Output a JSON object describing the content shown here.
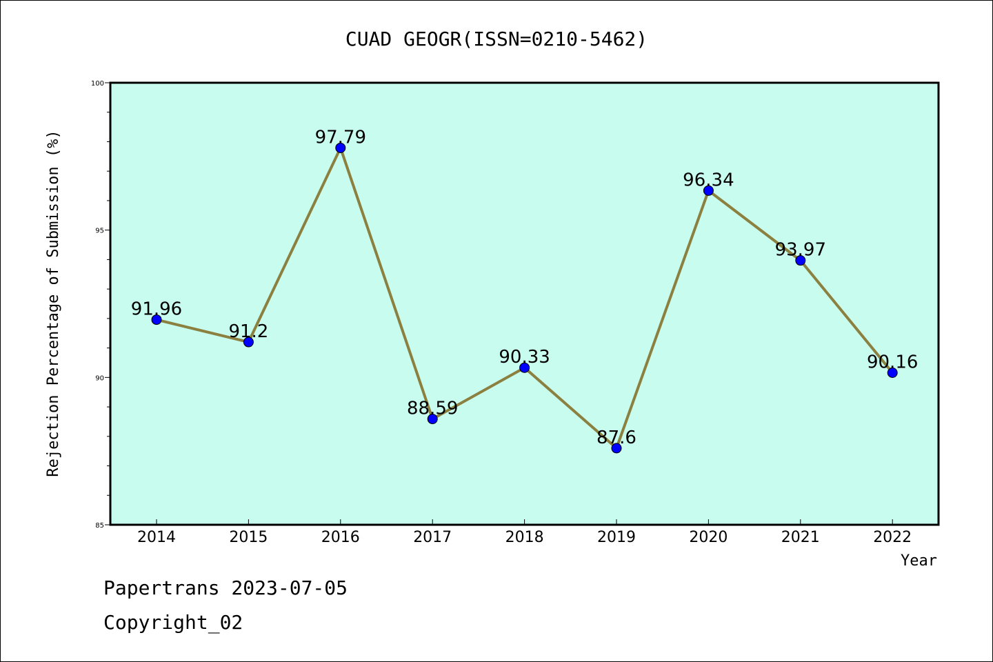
{
  "chart_data": {
    "type": "line",
    "title": "CUAD GEOGR(ISSN=0210-5462)",
    "xlabel": "Year",
    "ylabel": "Rejection Percentage of Submission (%)",
    "categories": [
      "2014",
      "2015",
      "2016",
      "2017",
      "2018",
      "2019",
      "2020",
      "2021",
      "2022"
    ],
    "series": [
      {
        "values": [
          91.96,
          91.2,
          97.79,
          88.59,
          90.33,
          87.6,
          96.34,
          93.97,
          90.16
        ],
        "labels": [
          "91.96",
          "91.2",
          "97.79",
          "88.59",
          "90.33",
          "87.6",
          "96.34",
          "93.97",
          "90.16"
        ]
      }
    ],
    "ylim": [
      85,
      100
    ],
    "yticks": [
      85,
      90,
      95,
      100
    ],
    "ytick_labels": [
      "85",
      "90",
      "95",
      "100"
    ],
    "yminor_step": 1,
    "grid": false,
    "colors": {
      "plot_background": "#c8fcee",
      "line": "#8b8040",
      "marker": "#0000ff"
    }
  },
  "footer": {
    "line1": "Papertrans 2023-07-05",
    "line2": "Copyright_02"
  }
}
